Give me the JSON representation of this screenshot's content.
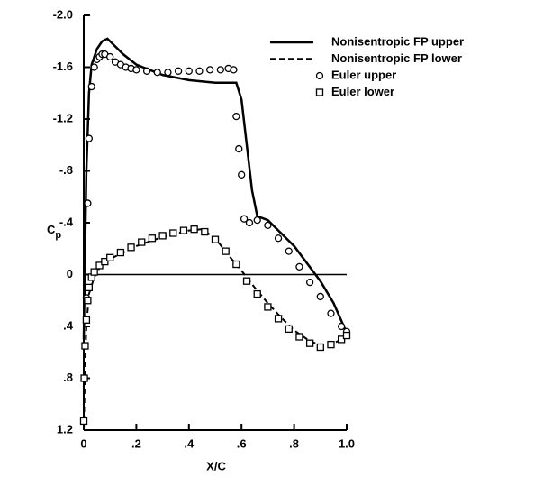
{
  "chart_data": {
    "type": "line",
    "xlabel": "X/C",
    "ylabel": {
      "text": "C",
      "subscript": "p"
    },
    "xlim": [
      0,
      1.0
    ],
    "ylim": [
      -2.0,
      1.2
    ],
    "xticks": [
      0,
      {
        "value": 0.2,
        "label": ".2"
      },
      {
        "value": 0.4,
        "label": ".4"
      },
      {
        "value": 0.6,
        "label": ".6"
      },
      {
        "value": 0.8,
        "label": ".8"
      },
      {
        "value": 1.0,
        "label": "1.0"
      }
    ],
    "yticks": [
      {
        "value": -2.0,
        "label": "-2.0"
      },
      {
        "value": -1.6,
        "label": "-1.6"
      },
      {
        "value": -1.2,
        "label": "-1.2"
      },
      {
        "value": -0.8,
        "label": "-.8"
      },
      {
        "value": -0.4,
        "label": "-.4"
      },
      0,
      {
        "value": 0.4,
        "label": ".4"
      },
      {
        "value": 0.8,
        "label": ".8"
      },
      {
        "value": 1.2,
        "label": "1.2"
      }
    ],
    "legend": "upper right",
    "series": [
      {
        "name": "Nonisentropic FP upper",
        "color": "#000000",
        "line": "solid",
        "x": [
          0,
          0.005,
          0.01,
          0.02,
          0.03,
          0.05,
          0.07,
          0.09,
          0.1,
          0.15,
          0.2,
          0.3,
          0.4,
          0.5,
          0.58,
          0.6,
          0.62,
          0.64,
          0.66,
          0.7,
          0.8,
          0.9,
          0.95,
          1.0
        ],
        "values": [
          0.5,
          -0.2,
          -0.8,
          -1.4,
          -1.62,
          -1.74,
          -1.8,
          -1.82,
          -1.8,
          -1.7,
          -1.62,
          -1.54,
          -1.5,
          -1.48,
          -1.48,
          -1.35,
          -1.0,
          -0.65,
          -0.45,
          -0.42,
          -0.22,
          0.05,
          0.22,
          0.45
        ]
      },
      {
        "name": "Nonisentropic FP lower",
        "color": "#000000",
        "line": "dashed",
        "x": [
          0,
          0.005,
          0.01,
          0.02,
          0.04,
          0.06,
          0.1,
          0.2,
          0.3,
          0.4,
          0.45,
          0.5,
          0.55,
          0.6,
          0.65,
          0.7,
          0.75,
          0.8,
          0.85,
          0.9,
          0.95,
          0.98,
          1.0
        ],
        "values": [
          1.2,
          0.7,
          0.4,
          0.15,
          0.02,
          -0.05,
          -0.12,
          -0.22,
          -0.29,
          -0.34,
          -0.35,
          -0.28,
          -0.15,
          -0.03,
          0.1,
          0.22,
          0.33,
          0.43,
          0.5,
          0.55,
          0.53,
          0.5,
          0.45
        ]
      },
      {
        "name": "Euler upper",
        "color": "#000000",
        "marker": "circle",
        "x": [
          0.01,
          0.015,
          0.02,
          0.03,
          0.04,
          0.05,
          0.06,
          0.07,
          0.08,
          0.1,
          0.12,
          0.14,
          0.16,
          0.18,
          0.2,
          0.24,
          0.28,
          0.32,
          0.36,
          0.4,
          0.44,
          0.48,
          0.52,
          0.55,
          0.57,
          0.58,
          0.59,
          0.6,
          0.61,
          0.63,
          0.66,
          0.7,
          0.74,
          0.78,
          0.82,
          0.86,
          0.9,
          0.94,
          0.98,
          1.0
        ],
        "values": [
          0.18,
          -0.55,
          -1.05,
          -1.45,
          -1.6,
          -1.66,
          -1.68,
          -1.7,
          -1.7,
          -1.68,
          -1.64,
          -1.62,
          -1.6,
          -1.59,
          -1.58,
          -1.57,
          -1.56,
          -1.56,
          -1.57,
          -1.57,
          -1.57,
          -1.58,
          -1.58,
          -1.59,
          -1.58,
          -1.22,
          -0.97,
          -0.77,
          -0.43,
          -0.4,
          -0.42,
          -0.38,
          -0.28,
          -0.18,
          -0.06,
          0.06,
          0.17,
          0.3,
          0.4,
          0.44
        ]
      },
      {
        "name": "Euler lower",
        "color": "#000000",
        "marker": "square",
        "x": [
          0,
          0.002,
          0.005,
          0.01,
          0.015,
          0.02,
          0.03,
          0.04,
          0.06,
          0.08,
          0.1,
          0.14,
          0.18,
          0.22,
          0.26,
          0.3,
          0.34,
          0.38,
          0.42,
          0.46,
          0.5,
          0.54,
          0.58,
          0.62,
          0.66,
          0.7,
          0.74,
          0.78,
          0.82,
          0.86,
          0.9,
          0.94,
          0.98,
          1.0
        ],
        "values": [
          1.13,
          0.8,
          0.55,
          0.35,
          0.2,
          0.1,
          0.02,
          -0.02,
          -0.07,
          -0.1,
          -0.13,
          -0.17,
          -0.21,
          -0.25,
          -0.28,
          -0.3,
          -0.32,
          -0.34,
          -0.35,
          -0.33,
          -0.27,
          -0.18,
          -0.08,
          0.05,
          0.15,
          0.25,
          0.34,
          0.42,
          0.48,
          0.53,
          0.56,
          0.54,
          0.5,
          0.47
        ]
      }
    ]
  }
}
